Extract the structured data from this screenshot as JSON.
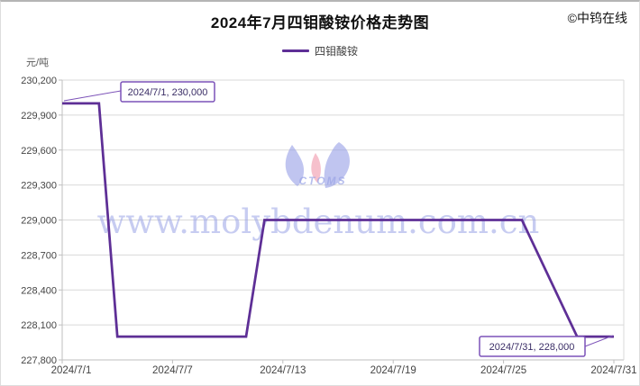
{
  "header": {
    "title": "2024年7月四钼酸铵价格走势图",
    "copyright": "©中钨在线"
  },
  "legend": {
    "series_label": "四钼酸铵"
  },
  "y_axis": {
    "unit_label": "元/吨",
    "ticks": [
      "230,200",
      "229,900",
      "229,600",
      "229,300",
      "229,000",
      "228,700",
      "228,400",
      "228,100",
      "227,800"
    ]
  },
  "x_axis": {
    "ticks": [
      "2024/7/1",
      "2024/7/7",
      "2024/7/13",
      "2024/7/19",
      "2024/7/25",
      "2024/7/31"
    ]
  },
  "annotations": {
    "start_label": "2024/7/1, 230,000",
    "end_label": "2024/7/31, 228,000"
  },
  "watermark": {
    "site_text": "www.molybdenum.com.cn",
    "logo_text": "CTOMS"
  },
  "colors": {
    "line": "#5e2f96",
    "annotation_border": "#7c52b8",
    "watermark": "#9aa4e6",
    "grid": "#d9d9d9",
    "axis": "#bfbfbf"
  },
  "chart_data": {
    "type": "line",
    "title": "2024年7月四钼酸铵价格走势图",
    "ylabel": "元/吨",
    "ylim": [
      227800,
      230200
    ],
    "y_step": 300,
    "x_range_days": [
      1,
      31
    ],
    "grid": true,
    "legend_position": "top-center",
    "series": [
      {
        "name": "四钼酸铵",
        "unit": "元/吨",
        "points": [
          {
            "date": "2024/7/1",
            "value": 230000
          },
          {
            "date": "2024/7/3",
            "value": 230000
          },
          {
            "date": "2024/7/4",
            "value": 228000
          },
          {
            "date": "2024/7/11",
            "value": 228000
          },
          {
            "date": "2024/7/12",
            "value": 229000
          },
          {
            "date": "2024/7/26",
            "value": 229000
          },
          {
            "date": "2024/7/29",
            "value": 228000
          },
          {
            "date": "2024/7/31",
            "value": 228000
          }
        ]
      }
    ],
    "callouts": [
      {
        "date": "2024/7/1",
        "value": 230000
      },
      {
        "date": "2024/7/31",
        "value": 228000
      }
    ]
  }
}
